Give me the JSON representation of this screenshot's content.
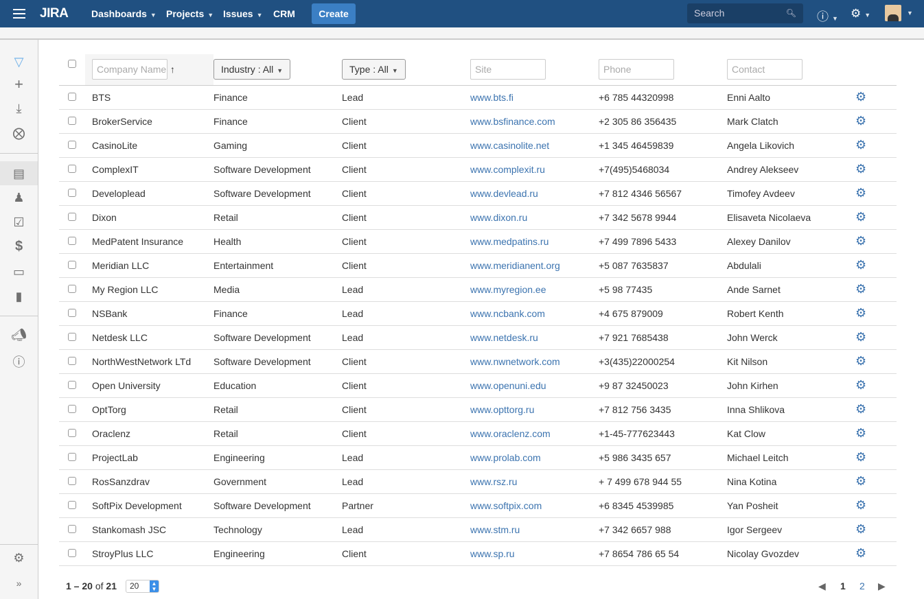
{
  "nav": {
    "logo": "JIRA",
    "menus": [
      "Dashboards",
      "Projects",
      "Issues",
      "CRM"
    ],
    "create": "Create",
    "search_placeholder": "Search"
  },
  "sidebar": {
    "items": [
      "crm-logo",
      "add",
      "download",
      "remove",
      "companies",
      "contacts",
      "tasks",
      "deals",
      "inbox",
      "reports",
      "announcements",
      "help",
      "settings",
      "expand"
    ]
  },
  "table": {
    "filters": {
      "company_placeholder": "Company Name",
      "industry": "Industry : All",
      "type": "Type : All",
      "site": "Site",
      "phone": "Phone",
      "contact": "Contact"
    },
    "rows": [
      [
        "BTS",
        "Finance",
        "Lead",
        "www.bts.fi",
        "+6 785 44320998",
        "Enni Aalto"
      ],
      [
        "BrokerService",
        "Finance",
        "Client",
        "www.bsfinance.com",
        "+2 305 86 356435",
        "Mark Clatch"
      ],
      [
        "CasinoLite",
        "Gaming",
        "Client",
        "www.casinolite.net",
        "+1 345 46459839",
        "Angela Likovich"
      ],
      [
        "ComplexIT",
        "Software Development",
        "Client",
        "www.complexit.ru",
        "+7(495)5468034",
        "Andrey Alekseev"
      ],
      [
        "Developlead",
        "Software Development",
        "Client",
        "www.devlead.ru",
        "+7 812 4346 56567",
        "Timofey Avdeev"
      ],
      [
        "Dixon",
        "Retail",
        "Client",
        "www.dixon.ru",
        "+7 342 5678 9944",
        "Elisaveta Nicolaeva"
      ],
      [
        "MedPatent Insurance",
        "Health",
        "Client",
        "www.medpatins.ru",
        "+7 499 7896 5433",
        "Alexey Danilov"
      ],
      [
        "Meridian LLC",
        "Entertainment",
        "Client",
        "www.meridianent.org",
        "+5 087 7635837",
        "Abdulali"
      ],
      [
        "My Region LLC",
        "Media",
        "Lead",
        "www.myregion.ee",
        "+5 98 77435",
        "Ande Sarnet"
      ],
      [
        "NSBank",
        "Finance",
        "Lead",
        "www.ncbank.com",
        "+4 675 879009",
        "Robert Kenth"
      ],
      [
        "Netdesk LLC",
        "Software Development",
        "Lead",
        "www.netdesk.ru",
        "+7 921 7685438",
        "John Werck"
      ],
      [
        "NorthWestNetwork LTd",
        "Software Development",
        "Client",
        "www.nwnetwork.com",
        "+3(435)22000254",
        "Kit Nilson"
      ],
      [
        "Open University",
        "Education",
        "Client",
        "www.openuni.edu",
        "+9 87 32450023",
        "John Kirhen"
      ],
      [
        "OptTorg",
        "Retail",
        "Client",
        "www.opttorg.ru",
        "+7 812 756 3435",
        "Inna Shlikova"
      ],
      [
        "Oraclenz",
        "Retail",
        "Client",
        "www.oraclenz.com",
        "+1-45-777623443",
        "Kat Clow"
      ],
      [
        "ProjectLab",
        "Engineering",
        "Lead",
        "www.prolab.com",
        "+5 986 3435 657",
        "Michael Leitch"
      ],
      [
        "RosSanzdrav",
        "Government",
        "Lead",
        "www.rsz.ru",
        "+ 7 499 678 944 55",
        "Nina Kotina"
      ],
      [
        "SoftPix Development",
        "Software Development",
        "Partner",
        "www.softpix.com",
        "+6 8345 4539985",
        "Yan Posheit"
      ],
      [
        "Stankomash JSC",
        "Technology",
        "Lead",
        "www.stm.ru",
        "+7 342 6657 988",
        "Igor Sergeev"
      ],
      [
        "StroyPlus LLC",
        "Engineering",
        "Client",
        "www.sp.ru",
        "+7 8654 786 65 54",
        "Nicolay Gvozdev"
      ]
    ]
  },
  "footer": {
    "range": "1 – 20",
    "of": "of",
    "total": "21",
    "page_size": "20",
    "pages": [
      "1",
      "2"
    ],
    "current_page": "1"
  },
  "colors": {
    "nav": "#205081",
    "link": "#3b73af",
    "create": "#3b7fc4"
  }
}
